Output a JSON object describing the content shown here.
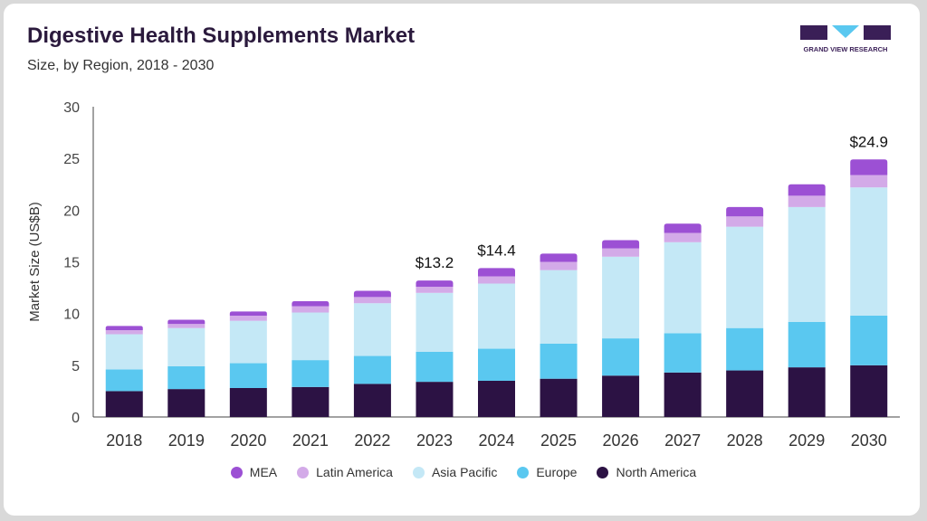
{
  "header": {
    "title": "Digestive Health Supplements Market",
    "subtitle": "Size, by Region, 2018 - 2030"
  },
  "logo": {
    "text": "GRAND VIEW RESEARCH"
  },
  "colors": {
    "North America": "#2c1244",
    "Europe": "#5ac8f0",
    "Asia Pacific": "#c4e8f6",
    "Latin America": "#d3aae8",
    "MEA": "#9c50d4",
    "axis": "#444444",
    "text": "#333333"
  },
  "chart_data": {
    "type": "bar",
    "stacked": true,
    "categories": [
      "2018",
      "2019",
      "2020",
      "2021",
      "2022",
      "2023",
      "2024",
      "2025",
      "2026",
      "2027",
      "2028",
      "2029",
      "2030"
    ],
    "series": [
      {
        "name": "North America",
        "values": [
          2.5,
          2.7,
          2.8,
          2.9,
          3.2,
          3.4,
          3.5,
          3.7,
          4.0,
          4.3,
          4.5,
          4.8,
          5.0
        ]
      },
      {
        "name": "Europe",
        "values": [
          2.1,
          2.2,
          2.4,
          2.6,
          2.7,
          2.9,
          3.1,
          3.4,
          3.6,
          3.8,
          4.1,
          4.4,
          4.8
        ]
      },
      {
        "name": "Asia Pacific",
        "values": [
          3.4,
          3.7,
          4.1,
          4.6,
          5.1,
          5.7,
          6.3,
          7.1,
          7.9,
          8.8,
          9.8,
          11.1,
          12.4
        ]
      },
      {
        "name": "Latin America",
        "values": [
          0.4,
          0.4,
          0.5,
          0.6,
          0.6,
          0.6,
          0.7,
          0.8,
          0.8,
          0.9,
          1.0,
          1.1,
          1.2
        ]
      },
      {
        "name": "MEA",
        "values": [
          0.4,
          0.4,
          0.4,
          0.5,
          0.6,
          0.6,
          0.8,
          0.8,
          0.8,
          0.9,
          0.9,
          1.1,
          1.5
        ]
      }
    ],
    "ylabel": "Market Size (US$B)",
    "xlabel": "",
    "ylim": [
      0,
      30
    ],
    "yticks": [
      0,
      5,
      10,
      15,
      20,
      25,
      30
    ],
    "grid": false,
    "legend_position": "bottom",
    "legend_order": [
      "MEA",
      "Latin America",
      "Asia Pacific",
      "Europe",
      "North America"
    ],
    "annotations": [
      {
        "category": "2023",
        "text": "$13.2"
      },
      {
        "category": "2024",
        "text": "$14.4"
      },
      {
        "category": "2030",
        "text": "$24.9"
      }
    ]
  }
}
